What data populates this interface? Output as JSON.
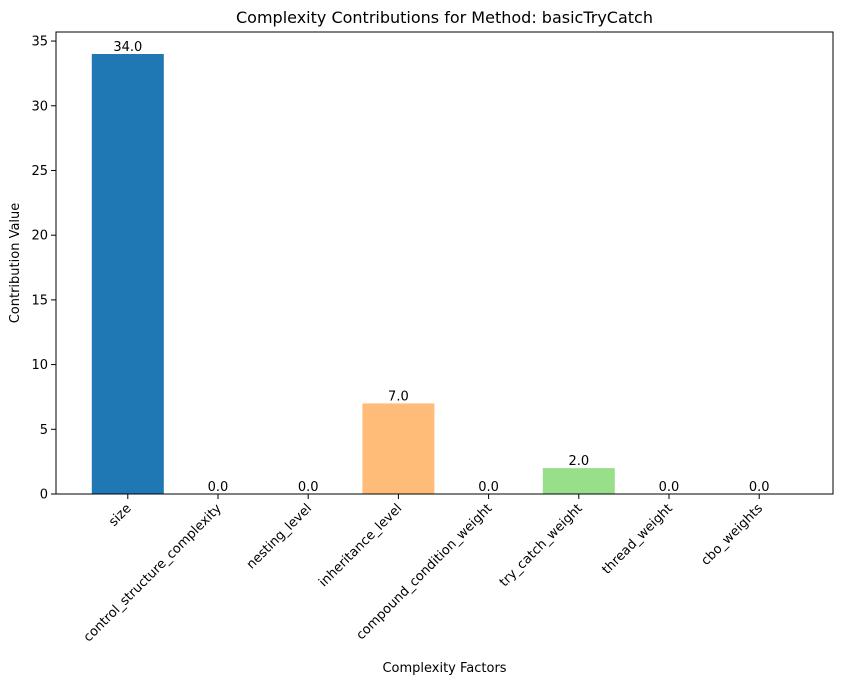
{
  "chart_data": {
    "type": "bar",
    "title": "Complexity Contributions for Method: basicTryCatch",
    "xlabel": "Complexity Factors",
    "ylabel": "Contribution Value",
    "categories": [
      "size",
      "control_structure_complexity",
      "nesting_level",
      "inheritance_level",
      "compound_condition_weight",
      "try_catch_weight",
      "thread_weight",
      "cbo_weights"
    ],
    "values": [
      34.0,
      0.0,
      0.0,
      7.0,
      0.0,
      2.0,
      0.0,
      0.0
    ],
    "value_labels": [
      "34.0",
      "0.0",
      "0.0",
      "7.0",
      "0.0",
      "2.0",
      "0.0",
      "0.0"
    ],
    "colors": [
      "#1f77b4",
      "#aec7e8",
      "#ff7f0e",
      "#ffbb78",
      "#2ca02c",
      "#98df8a",
      "#d62728",
      "#ff9896"
    ],
    "yticks": [
      0,
      5,
      10,
      15,
      20,
      25,
      30,
      35
    ],
    "ylim": [
      0,
      35.7
    ],
    "grid": false,
    "legend": "none"
  }
}
